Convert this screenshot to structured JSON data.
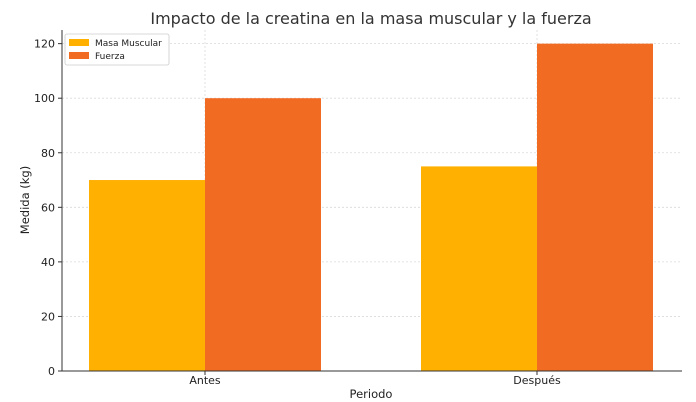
{
  "chart_data": {
    "type": "bar",
    "title": "Impacto de la creatina en la masa muscular y la fuerza",
    "xlabel": "Periodo",
    "ylabel": "Medida (kg)",
    "categories": [
      "Antes",
      "Después"
    ],
    "series": [
      {
        "name": "Masa Muscular",
        "values": [
          70,
          75
        ],
        "color": "#FFB000"
      },
      {
        "name": "Fuerza",
        "values": [
          100,
          120
        ],
        "color": "#F26B22"
      }
    ],
    "ylim": [
      0,
      125
    ],
    "yticks": [
      0,
      20,
      40,
      60,
      80,
      100,
      120
    ],
    "grid": true,
    "legend_position": "top-left"
  }
}
